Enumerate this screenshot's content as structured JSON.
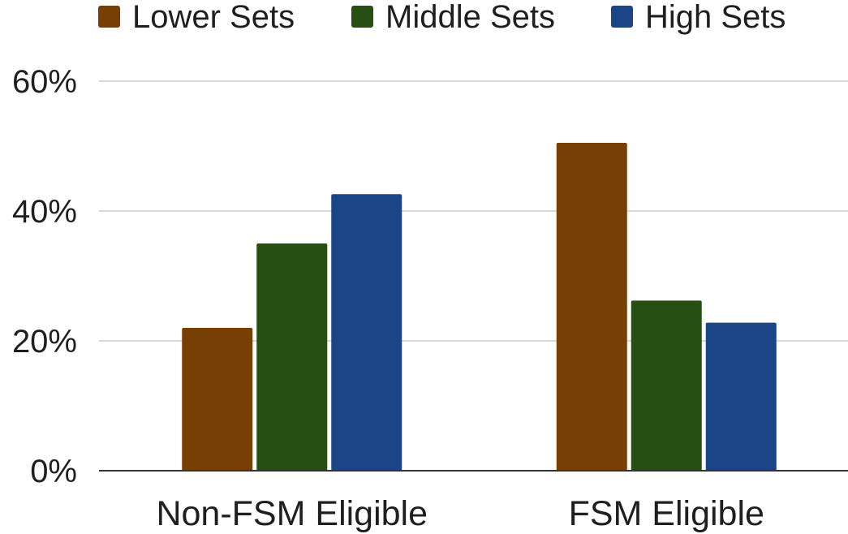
{
  "chart_data": {
    "type": "bar",
    "categories": [
      "Non-FSM Eligible",
      "FSM Eligible"
    ],
    "series": [
      {
        "name": "Lower Sets",
        "values": [
          22,
          50.5
        ],
        "color": "#783f04"
      },
      {
        "name": "Middle Sets",
        "values": [
          35,
          26.2
        ],
        "color": "#274e13"
      },
      {
        "name": "High Sets",
        "values": [
          42.6,
          22.8
        ],
        "color": "#1c4587"
      }
    ],
    "title": "",
    "xlabel": "",
    "ylabel": "",
    "ylim": [
      0,
      60
    ],
    "yticks": [
      {
        "value": 0,
        "label": "0%"
      },
      {
        "value": 20,
        "label": "20%"
      },
      {
        "value": 40,
        "label": "40%"
      },
      {
        "value": 60,
        "label": "60%"
      }
    ],
    "grid": true,
    "legend_position": "top"
  }
}
